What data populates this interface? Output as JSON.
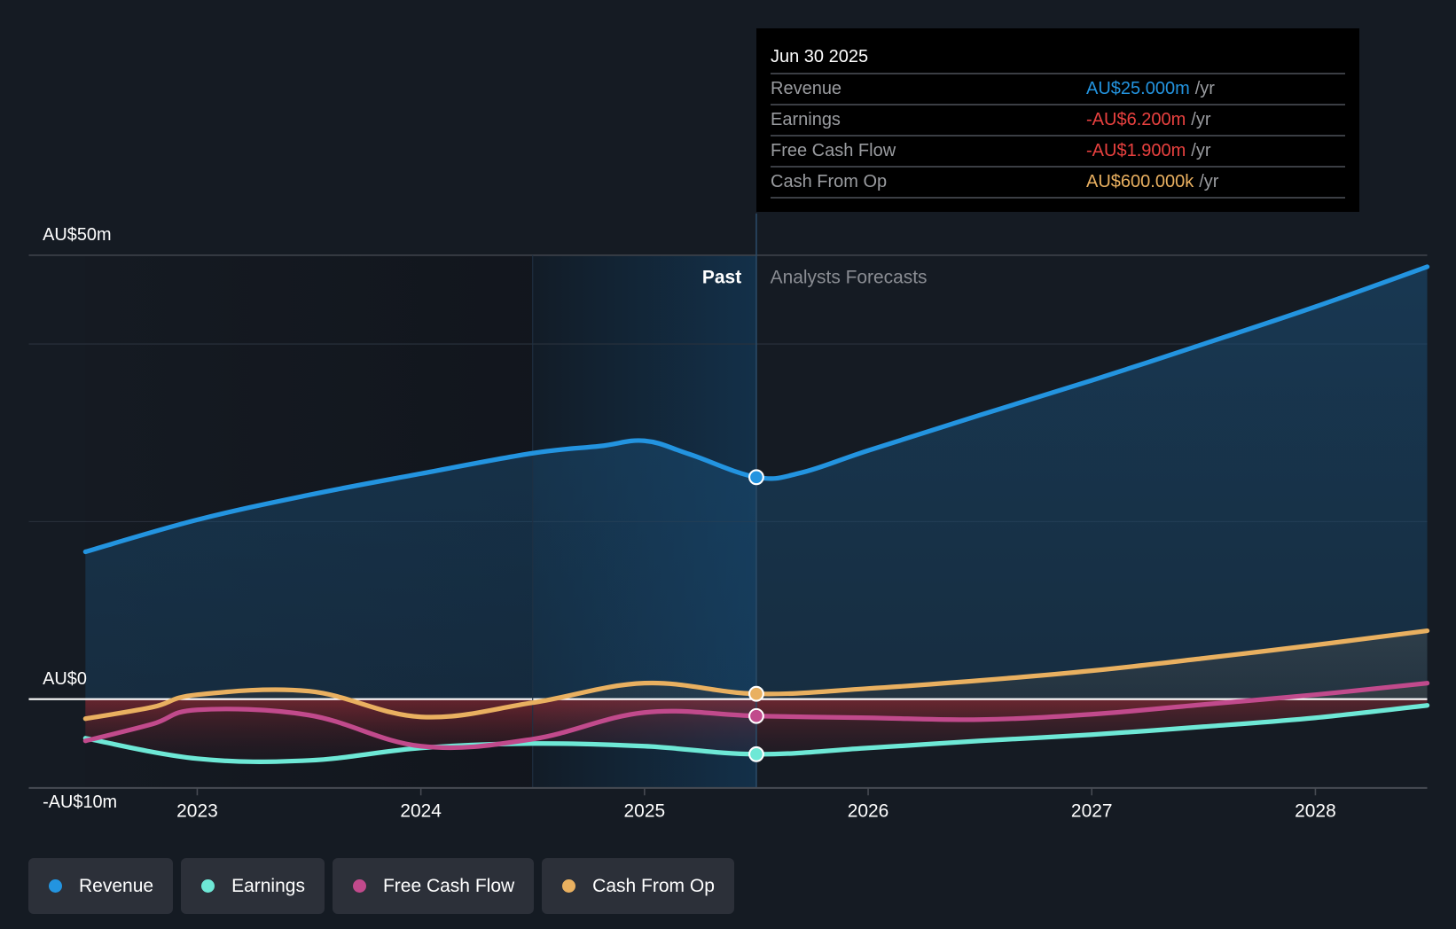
{
  "tooltip": {
    "date": "Jun 30 2025",
    "rows": [
      {
        "label": "Revenue",
        "value": "AU$25.000m",
        "unit": "/yr",
        "color": "#2394e0"
      },
      {
        "label": "Earnings",
        "value": "-AU$6.200m",
        "unit": "/yr",
        "color": "#e8413f"
      },
      {
        "label": "Free Cash Flow",
        "value": "-AU$1.900m",
        "unit": "/yr",
        "color": "#e8413f"
      },
      {
        "label": "Cash From Op",
        "value": "AU$600.000k",
        "unit": "/yr",
        "color": "#e9b060"
      }
    ]
  },
  "regions": {
    "past_label": "Past",
    "forecast_label": "Analysts Forecasts"
  },
  "legend": [
    {
      "label": "Revenue",
      "color": "#2394e0"
    },
    {
      "label": "Earnings",
      "color": "#6ee8d6"
    },
    {
      "label": "Free Cash Flow",
      "color": "#c14a8c"
    },
    {
      "label": "Cash From Op",
      "color": "#e9b060"
    }
  ],
  "chart_data": {
    "type": "line",
    "title": "",
    "xlabel": "",
    "ylabel": "",
    "unit": "AU$m",
    "x_ticks": [
      "2023",
      "2024",
      "2025",
      "2026",
      "2027",
      "2028"
    ],
    "x_tick_values": [
      2023.0,
      2024.0,
      2025.0,
      2026.0,
      2027.0,
      2028.0
    ],
    "xlim": [
      2022.25,
      2028.5
    ],
    "y_ticks": [
      {
        "value": 50,
        "label": "AU$50m"
      },
      {
        "value": 0,
        "label": "AU$0"
      },
      {
        "value": -10,
        "label": "-AU$10m"
      }
    ],
    "ylim": [
      -10,
      50
    ],
    "gridlines": [
      50,
      40,
      20
    ],
    "past_end": 2025.5,
    "highlight_start": 2024.5,
    "legend_position": "bottom-left",
    "series": [
      {
        "name": "Revenue",
        "color": "#2394e0",
        "x": [
          2022.5,
          2023.0,
          2023.5,
          2024.0,
          2024.5,
          2024.8,
          2025.0,
          2025.2,
          2025.5,
          2025.7,
          2026.0,
          2026.5,
          2027.0,
          2027.5,
          2028.0,
          2028.5
        ],
        "y": [
          16.6,
          20.2,
          23.0,
          25.4,
          27.7,
          28.5,
          29.1,
          27.6,
          25.0,
          25.5,
          28.0,
          32.0,
          35.9,
          40.0,
          44.2,
          48.7
        ]
      },
      {
        "name": "Earnings",
        "color": "#6ee8d6",
        "x": [
          2022.5,
          2023.0,
          2023.5,
          2024.0,
          2024.5,
          2025.0,
          2025.5,
          2026.0,
          2026.5,
          2027.0,
          2027.5,
          2028.0,
          2028.5
        ],
        "y": [
          -4.4,
          -6.7,
          -6.9,
          -5.5,
          -5.0,
          -5.3,
          -6.2,
          -5.5,
          -4.7,
          -4.0,
          -3.1,
          -2.1,
          -0.7
        ]
      },
      {
        "name": "Free Cash Flow",
        "color": "#c14a8c",
        "x": [
          2022.5,
          2022.8,
          2023.0,
          2023.5,
          2024.0,
          2024.5,
          2025.0,
          2025.5,
          2026.0,
          2026.5,
          2027.0,
          2027.5,
          2028.0,
          2028.5
        ],
        "y": [
          -4.7,
          -2.8,
          -1.2,
          -1.8,
          -5.3,
          -4.5,
          -1.5,
          -1.9,
          -2.1,
          -2.3,
          -1.7,
          -0.6,
          0.5,
          1.8
        ]
      },
      {
        "name": "Cash From Op",
        "color": "#e9b060",
        "x": [
          2022.5,
          2022.8,
          2023.0,
          2023.5,
          2024.0,
          2024.5,
          2025.0,
          2025.5,
          2026.0,
          2026.5,
          2027.0,
          2027.5,
          2028.0,
          2028.5
        ],
        "y": [
          -2.2,
          -0.9,
          0.5,
          0.9,
          -2.0,
          -0.4,
          1.8,
          0.6,
          1.2,
          2.1,
          3.2,
          4.6,
          6.1,
          7.7
        ]
      }
    ],
    "markers_at": 2025.5
  }
}
